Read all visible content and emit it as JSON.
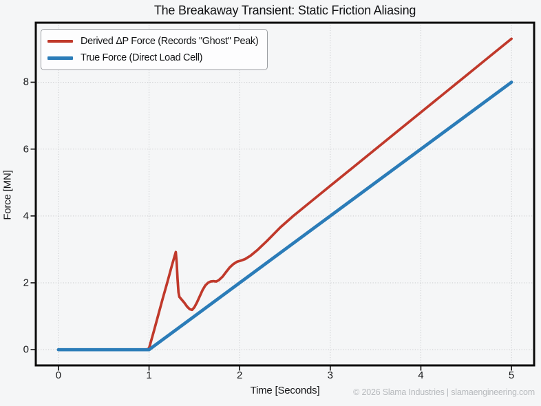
{
  "title": "The Breakaway Transient: Static Friction Aliasing",
  "watermark": "© 2026 Slama Industries | slamaengineering.com",
  "legend": {
    "position": "upper-left",
    "items": [
      {
        "label": "Derived ΔP Force (Records \"Ghost\" Peak)",
        "color": "#c0392b",
        "thickness": 4
      },
      {
        "label": "True Force (Direct Load Cell)",
        "color": "#2b7cb8",
        "thickness": 5
      }
    ]
  },
  "colors": {
    "derived_line": "#c0392b",
    "true_line": "#2b7cb8",
    "grid": "#c7c9cb",
    "axis_border": "#0a0a0a",
    "background": "#f5f6f7",
    "watermark": "#b7babd"
  },
  "chart_data": {
    "type": "line",
    "title": "The Breakaway Transient: Static Friction Aliasing",
    "xlabel": "Time [Seconds]",
    "ylabel": "Force [MN]",
    "xlim": [
      -0.25,
      5.25
    ],
    "ylim": [
      -0.47,
      9.78
    ],
    "xticks": [
      0,
      1,
      2,
      3,
      4,
      5
    ],
    "yticks": [
      0,
      2,
      4,
      6,
      8
    ],
    "grid": "dotted",
    "legend_position": "upper left",
    "series": [
      {
        "name": "Derived ΔP Force (Records \"Ghost\" Peak)",
        "color": "#c0392b",
        "width": 3.7,
        "points": [
          [
            0,
            0
          ],
          [
            0.5,
            0
          ],
          [
            0.97,
            0
          ],
          [
            1.0,
            0.04
          ],
          [
            1.05,
            0.52
          ],
          [
            1.1,
            1.02
          ],
          [
            1.15,
            1.52
          ],
          [
            1.2,
            2.0
          ],
          [
            1.25,
            2.5
          ],
          [
            1.28,
            2.78
          ],
          [
            1.295,
            2.92
          ],
          [
            1.305,
            2.6
          ],
          [
            1.315,
            2.1
          ],
          [
            1.325,
            1.72
          ],
          [
            1.335,
            1.58
          ],
          [
            1.36,
            1.5
          ],
          [
            1.39,
            1.4
          ],
          [
            1.42,
            1.29
          ],
          [
            1.45,
            1.21
          ],
          [
            1.475,
            1.19
          ],
          [
            1.5,
            1.27
          ],
          [
            1.53,
            1.42
          ],
          [
            1.56,
            1.6
          ],
          [
            1.59,
            1.78
          ],
          [
            1.62,
            1.92
          ],
          [
            1.65,
            2.0
          ],
          [
            1.68,
            2.04
          ],
          [
            1.71,
            2.05
          ],
          [
            1.74,
            2.04
          ],
          [
            1.77,
            2.08
          ],
          [
            1.81,
            2.18
          ],
          [
            1.85,
            2.32
          ],
          [
            1.89,
            2.46
          ],
          [
            1.93,
            2.56
          ],
          [
            1.97,
            2.63
          ],
          [
            2.01,
            2.66
          ],
          [
            2.06,
            2.71
          ],
          [
            2.12,
            2.81
          ],
          [
            2.2,
            2.99
          ],
          [
            2.3,
            3.25
          ],
          [
            2.45,
            3.66
          ],
          [
            2.6,
            4.02
          ],
          [
            2.8,
            4.46
          ],
          [
            3.0,
            4.9
          ],
          [
            3.25,
            5.45
          ],
          [
            3.5,
            6.0
          ],
          [
            3.75,
            6.55
          ],
          [
            4.0,
            7.1
          ],
          [
            4.25,
            7.65
          ],
          [
            4.5,
            8.2
          ],
          [
            4.75,
            8.75
          ],
          [
            5.0,
            9.3
          ]
        ]
      },
      {
        "name": "True Force (Direct Load Cell)",
        "color": "#2b7cb8",
        "width": 4.7,
        "points": [
          [
            0,
            0
          ],
          [
            1,
            0
          ],
          [
            5,
            8
          ]
        ]
      }
    ]
  }
}
